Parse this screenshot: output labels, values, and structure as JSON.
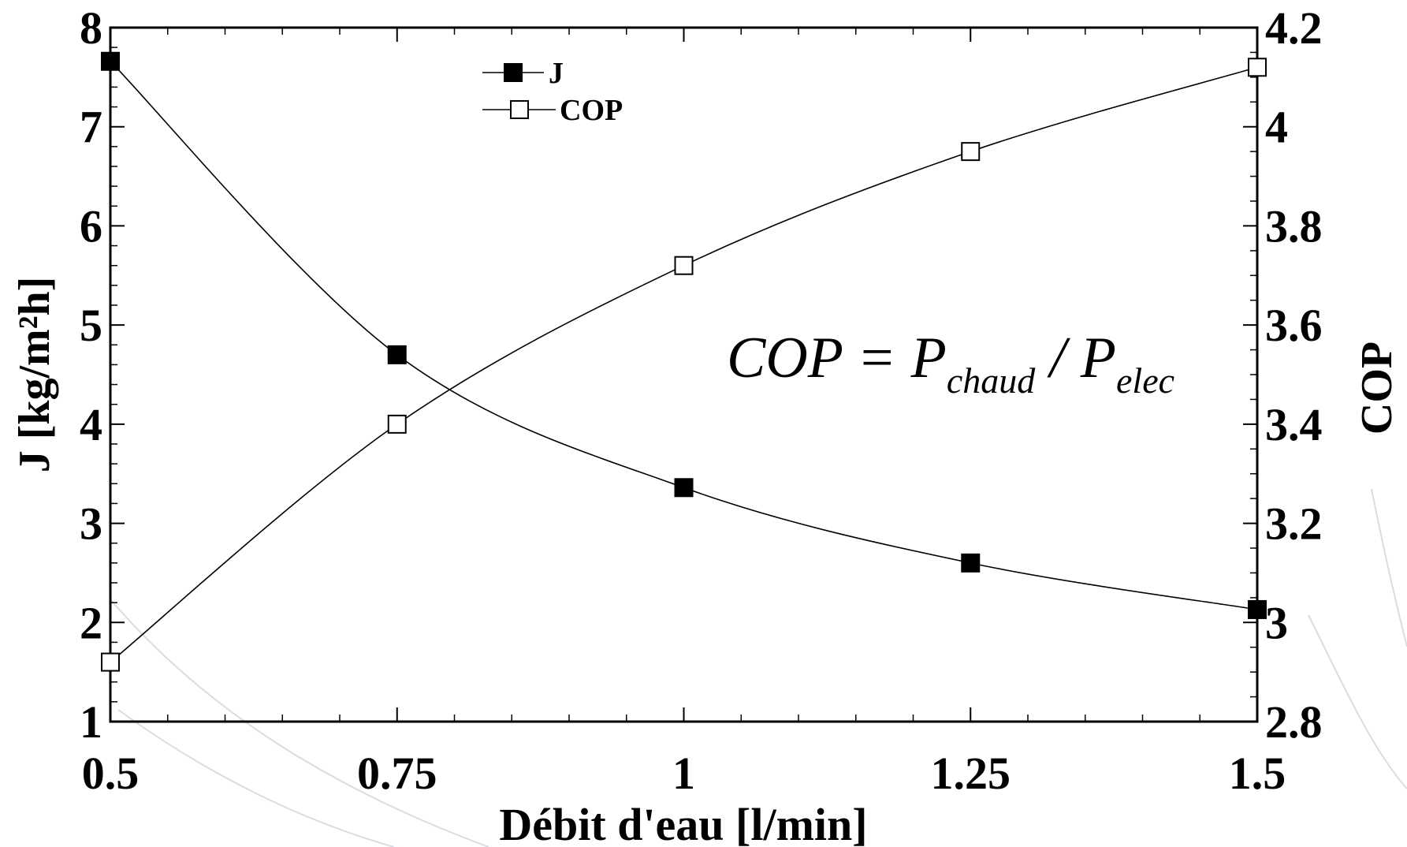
{
  "chart_data": {
    "type": "line",
    "x": [
      0.5,
      0.75,
      1,
      1.25,
      1.5
    ],
    "x_ticks": [
      "0.5",
      "0.75",
      "1",
      "1.25",
      "1.5"
    ],
    "xlabel": "Débit d'eau [l/min]",
    "xlim": [
      0.5,
      1.5
    ],
    "ylabel_left": "J [kg/m²h]",
    "ylim_left": [
      1,
      8
    ],
    "y_ticks_left": [
      "1",
      "2",
      "3",
      "4",
      "5",
      "6",
      "7",
      "8"
    ],
    "ylabel_right": "COP",
    "ylim_right": [
      2.8,
      4.2
    ],
    "y_ticks_right": [
      "2.8",
      "3",
      "3.2",
      "3.4",
      "3.6",
      "3.8",
      "4",
      "4.2"
    ],
    "series": [
      {
        "name": "J",
        "axis": "left",
        "marker": "filled-square",
        "values": [
          7.66,
          4.7,
          3.36,
          2.6,
          2.13
        ]
      },
      {
        "name": "COP",
        "axis": "right",
        "marker": "open-square",
        "values": [
          2.92,
          3.4,
          3.72,
          3.95,
          4.12
        ]
      }
    ],
    "legend_placement": "top-center",
    "annotation": {
      "base": "COP = P",
      "sub1": "chaud",
      "mid": " / P",
      "sub2": "elec"
    },
    "grid": false
  }
}
